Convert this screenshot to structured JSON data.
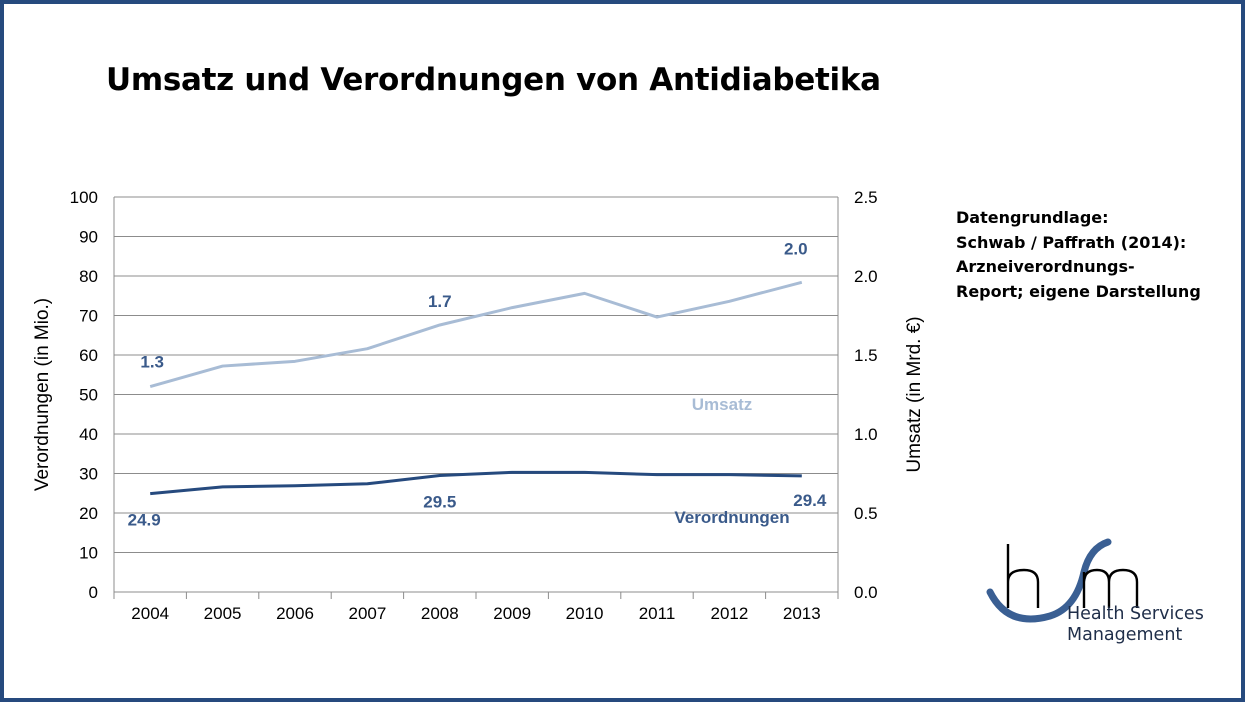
{
  "title": "Umsatz und Verordnungen von Antidiabetika",
  "source": {
    "lines": [
      "Datengrundlage:",
      "Schwab / Paffrath (2014):",
      "Arzneiverordnungs-",
      "Report; eigene Darstellung"
    ]
  },
  "logo": {
    "name": "Health Services Management",
    "line1": "Health Services",
    "line2": "Management"
  },
  "colors": {
    "verordnungen": "#264a7e",
    "umsatz": "#a8bcd5",
    "grid": "#8c8c8c",
    "label": "#3a5a8a"
  },
  "chart_data": {
    "type": "line",
    "x": [
      "2004",
      "2005",
      "2006",
      "2007",
      "2008",
      "2009",
      "2010",
      "2011",
      "2012",
      "2013"
    ],
    "ylabel": "Verordnungen  (in Mio.)",
    "y2label": "Umsatz  (in Mrd. €)",
    "ylim": [
      0,
      100
    ],
    "y2lim": [
      0,
      2.5
    ],
    "yticks": [
      "0",
      "10",
      "20",
      "30",
      "40",
      "50",
      "60",
      "70",
      "80",
      "90",
      "100"
    ],
    "y2ticks": [
      "0.0",
      "0.5",
      "1.0",
      "1.5",
      "2.0",
      "2.5"
    ],
    "grid": true,
    "series": [
      {
        "name": "Verordnungen",
        "axis": "left",
        "values": [
          24.9,
          26.6,
          26.9,
          27.4,
          29.5,
          30.3,
          30.3,
          29.7,
          29.7,
          29.4
        ],
        "labels": {
          "0": "24.9",
          "4": "29.5",
          "9": "29.4"
        }
      },
      {
        "name": "Umsatz",
        "axis": "right",
        "values": [
          1.3,
          1.43,
          1.46,
          1.54,
          1.69,
          1.8,
          1.89,
          1.74,
          1.84,
          1.96
        ],
        "labels": {
          "0": "1.3",
          "4": "1.7",
          "9": "2.0"
        }
      }
    ]
  }
}
